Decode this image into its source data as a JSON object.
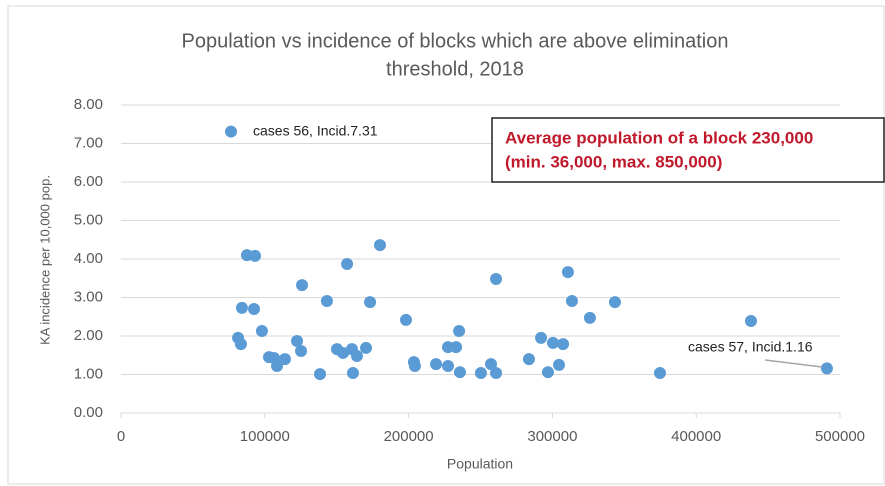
{
  "chart_data": {
    "type": "scatter",
    "title": [
      "Population vs incidence of blocks which are above elimination",
      "threshold, 2018"
    ],
    "x_label": "Population",
    "y_label": "KA incidence per 10,000 pop.",
    "color": "#5b9bd5",
    "grid": true,
    "xlim": [
      0,
      500000
    ],
    "xticks": [
      0,
      100000,
      200000,
      300000,
      400000,
      500000
    ],
    "ylim": [
      0,
      8
    ],
    "yticks": [
      {
        "value": 0,
        "label": "0.00"
      },
      {
        "value": 1,
        "label": "1.00"
      },
      {
        "value": 2,
        "label": "2.00"
      },
      {
        "value": 3,
        "label": "3.00"
      },
      {
        "value": 4,
        "label": "4.00"
      },
      {
        "value": 5,
        "label": "5.00"
      },
      {
        "value": 6,
        "label": "6.00"
      },
      {
        "value": 7,
        "label": "7.00"
      },
      {
        "value": 8,
        "label": "8.00"
      }
    ],
    "x": [
      76500,
      87600,
      93200,
      84100,
      92500,
      81400,
      83400,
      98000,
      102900,
      106400,
      108500,
      114000,
      122400,
      125200,
      125900,
      138400,
      143200,
      150200,
      154400,
      157200,
      160600,
      161300,
      164100,
      170400,
      173200,
      180100,
      198200,
      203700,
      204400,
      219100,
      227400,
      227400,
      233000,
      235100,
      235700,
      250300,
      257300,
      260800,
      260800,
      283700,
      292100,
      296900,
      300400,
      304600,
      307400,
      310800,
      313600,
      326100,
      343500,
      374800,
      438100,
      490900
    ],
    "values": [
      7.31,
      4.1,
      4.08,
      2.73,
      2.7,
      1.95,
      1.79,
      2.13,
      1.45,
      1.43,
      1.22,
      1.4,
      1.87,
      1.61,
      3.32,
      1.01,
      2.91,
      1.66,
      1.56,
      3.87,
      1.66,
      1.04,
      1.48,
      1.69,
      2.88,
      4.36,
      2.42,
      1.32,
      1.22,
      1.27,
      1.71,
      1.22,
      1.71,
      2.13,
      1.06,
      1.04,
      1.27,
      3.48,
      1.04,
      1.4,
      1.95,
      1.06,
      1.82,
      1.25,
      1.79,
      3.66,
      2.91,
      2.47,
      2.88,
      1.04,
      2.39,
      1.16
    ],
    "annotations": [
      "cases 56, Incid.7.31",
      "cases 57, Incid.1.16"
    ],
    "info_box": [
      "Average population of a block 230,000",
      "(min. 36,000, max. 850,000)"
    ]
  }
}
